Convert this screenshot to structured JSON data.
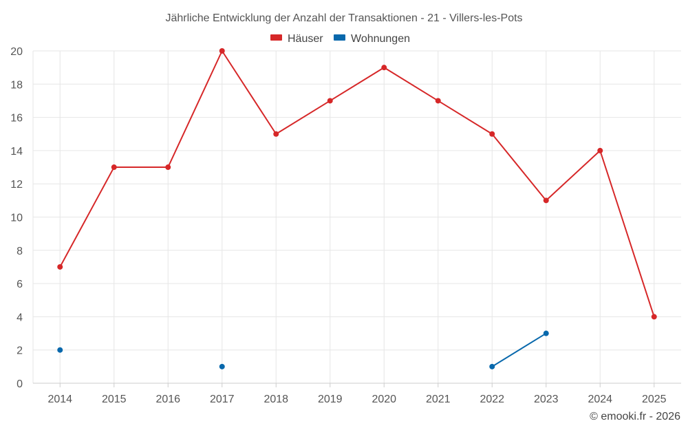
{
  "chart_data": {
    "type": "line",
    "title": "Jährliche Entwicklung der Anzahl der Transaktionen - 21 - Villers-les-Pots",
    "categories": [
      "2014",
      "2015",
      "2016",
      "2017",
      "2018",
      "2019",
      "2020",
      "2021",
      "2022",
      "2023",
      "2024",
      "2025"
    ],
    "series": [
      {
        "name": "Häuser",
        "color": "#d62728",
        "values": [
          7,
          13,
          13,
          20,
          15,
          17,
          19,
          17,
          15,
          11,
          14,
          4
        ]
      },
      {
        "name": "Wohnungen",
        "color": "#0868ac",
        "values": [
          2,
          null,
          null,
          1,
          null,
          null,
          null,
          null,
          1,
          3,
          null,
          null
        ]
      }
    ],
    "ylim": [
      0,
      20
    ],
    "yticks": [
      0,
      2,
      4,
      6,
      8,
      10,
      12,
      14,
      16,
      18,
      20
    ],
    "grid": true,
    "legend_position": "top-center",
    "xlabel": "",
    "ylabel": ""
  },
  "credit": "© emooki.fr - 2026"
}
